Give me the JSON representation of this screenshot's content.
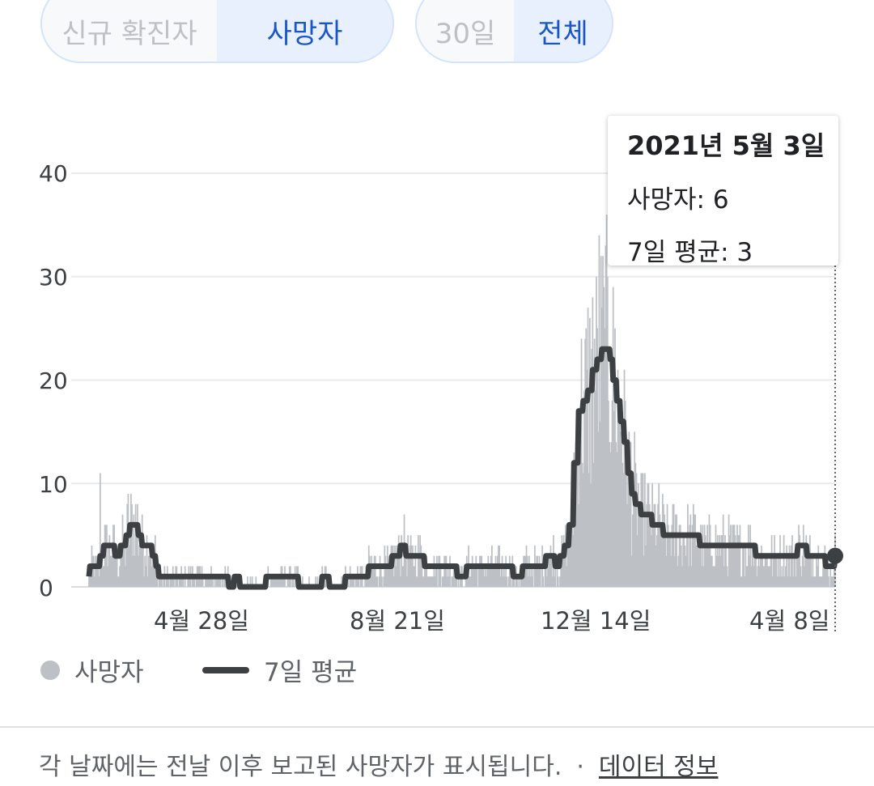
{
  "controls": {
    "metric_options": [
      "신규 확진자",
      "사망자"
    ],
    "metric_selected": "사망자",
    "range_options": [
      "30일",
      "전체"
    ],
    "range_selected": "전체"
  },
  "tooltip": {
    "date": "2021년 5월 3일",
    "deaths_line": "사망자: 6",
    "avg_line": "7일 평균: 3"
  },
  "legend": {
    "bars_label": "사망자",
    "line_label": "7일 평균"
  },
  "footer": {
    "note": "각 날짜에는 전날 이후 보고된 사망자가 표시됩니다.",
    "separator": "·",
    "link": "데이터 정보"
  },
  "colors": {
    "bars": "#bdc1c6",
    "line": "#3c4043",
    "selected_bg": "#e8f0fe",
    "selected_text": "#1a56c7",
    "grid": "#e8eaed"
  },
  "chart_data": {
    "type": "bar",
    "ylim": [
      0,
      40
    ],
    "yticks": [
      0,
      10,
      20,
      30,
      40
    ],
    "xtick_labels": [
      "4월 28일",
      "8월 21일",
      "12월 14일",
      "4월 8일"
    ],
    "grid": true,
    "legend_position": "bottom-left",
    "series": [
      {
        "name": "사망자",
        "kind": "bar",
        "description": "daily deaths"
      },
      {
        "name": "7일 평균",
        "kind": "line",
        "keypoints": [
          [
            0,
            1
          ],
          [
            1,
            2
          ],
          [
            8,
            2
          ],
          [
            12,
            3
          ],
          [
            16,
            4
          ],
          [
            24,
            4
          ],
          [
            28,
            3
          ],
          [
            34,
            4
          ],
          [
            40,
            5
          ],
          [
            44,
            6
          ],
          [
            49,
            6
          ],
          [
            53,
            5
          ],
          [
            57,
            4
          ],
          [
            64,
            4
          ],
          [
            68,
            3
          ],
          [
            72,
            2
          ],
          [
            75,
            1
          ],
          [
            100,
            1
          ],
          [
            130,
            1
          ],
          [
            140,
            1
          ],
          [
            150,
            0
          ],
          [
            156,
            1
          ],
          [
            162,
            0
          ],
          [
            190,
            1
          ],
          [
            210,
            1
          ],
          [
            225,
            0
          ],
          [
            245,
            0
          ],
          [
            250,
            1
          ],
          [
            258,
            0
          ],
          [
            270,
            0
          ],
          [
            275,
            1
          ],
          [
            290,
            1
          ],
          [
            300,
            2
          ],
          [
            320,
            2
          ],
          [
            325,
            3
          ],
          [
            330,
            3
          ],
          [
            334,
            4
          ],
          [
            340,
            3
          ],
          [
            350,
            3
          ],
          [
            360,
            2
          ],
          [
            380,
            2
          ],
          [
            395,
            1
          ],
          [
            405,
            2
          ],
          [
            420,
            2
          ],
          [
            435,
            2
          ],
          [
            445,
            2
          ],
          [
            455,
            1
          ],
          [
            465,
            2
          ],
          [
            480,
            2
          ],
          [
            490,
            3
          ],
          [
            495,
            3
          ],
          [
            500,
            2
          ],
          [
            505,
            3
          ],
          [
            510,
            4
          ],
          [
            515,
            6
          ],
          [
            520,
            12
          ],
          [
            525,
            17
          ],
          [
            530,
            18
          ],
          [
            535,
            19
          ],
          [
            540,
            21
          ],
          [
            545,
            22
          ],
          [
            550,
            23
          ],
          [
            555,
            23
          ],
          [
            559,
            22
          ],
          [
            562,
            20
          ],
          [
            566,
            18
          ],
          [
            570,
            16
          ],
          [
            574,
            14
          ],
          [
            578,
            11
          ],
          [
            582,
            9
          ],
          [
            586,
            8
          ],
          [
            592,
            7
          ],
          [
            598,
            7
          ],
          [
            604,
            6
          ],
          [
            610,
            6
          ],
          [
            616,
            5
          ],
          [
            625,
            5
          ],
          [
            635,
            5
          ],
          [
            645,
            5
          ],
          [
            655,
            4
          ],
          [
            670,
            4
          ],
          [
            685,
            4
          ],
          [
            700,
            4
          ],
          [
            715,
            3
          ],
          [
            730,
            3
          ],
          [
            745,
            3
          ],
          [
            760,
            4
          ],
          [
            770,
            3
          ],
          [
            780,
            3
          ],
          [
            790,
            2
          ],
          [
            800,
            3
          ]
        ]
      }
    ],
    "highlight": {
      "date": "2021년 5월 3일",
      "deaths": 6,
      "avg": 3
    }
  }
}
